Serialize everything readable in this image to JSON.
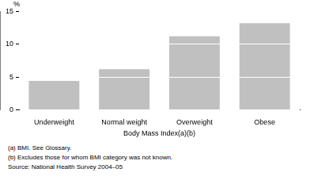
{
  "chart_data": {
    "type": "bar",
    "y_label": "%",
    "x_label": "Body Mass Index(a)(b)",
    "categories": [
      "Underweight",
      "Normal weight",
      "Overweight",
      "Obese"
    ],
    "values": [
      4.4,
      6.2,
      11.2,
      13.2
    ],
    "color": "#c0c0c0",
    "ylim": [
      0,
      15
    ],
    "yticks": [
      0,
      5,
      10,
      15
    ],
    "grid": true,
    "notes": [
      "(a) BMI. See Glossary.",
      "(b) Excludes those for whom BMI category was not known.",
      "Source: National Health Survey 2004–05"
    ]
  }
}
